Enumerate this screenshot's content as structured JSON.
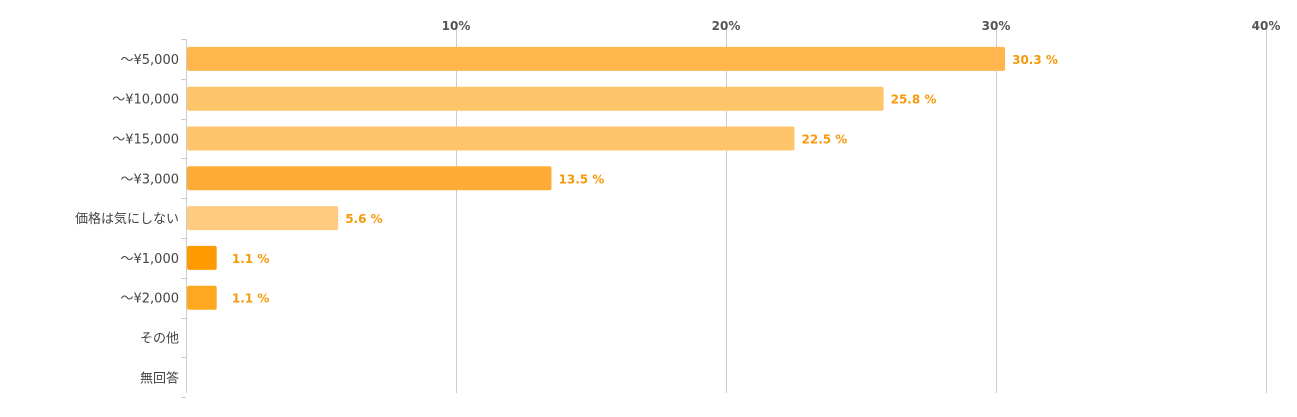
{
  "chart_data": {
    "type": "bar",
    "orientation": "horizontal",
    "categories": [
      "〜¥5,000",
      "〜¥10,000",
      "〜¥15,000",
      "〜¥3,000",
      "価格は気にしない",
      "〜¥1,000",
      "〜¥2,000",
      "その他",
      "無回答"
    ],
    "values": [
      30.3,
      25.8,
      22.5,
      13.5,
      5.6,
      1.1,
      1.1,
      0,
      0
    ],
    "data_labels": [
      "30.3 %",
      "25.8 %",
      "22.5 %",
      "13.5 %",
      "5.6 %",
      "1.1 %",
      "1.1 %",
      "",
      ""
    ],
    "bar_colors": [
      "#FFB74D",
      "#FFC56B",
      "#FFC56B",
      "#FDAD36",
      "#FFCB80",
      "#FF9A00",
      "#FDA81E",
      "#FFC56B",
      "#FFC56B"
    ],
    "label_color": "#F59A0C",
    "x_ticks": [
      10,
      20,
      30,
      40
    ],
    "x_tick_labels": [
      "10%",
      "20%",
      "30%",
      "40%"
    ],
    "xlim": [
      0,
      40
    ],
    "x_axis_position": "top",
    "grid": true,
    "legend": "none"
  }
}
